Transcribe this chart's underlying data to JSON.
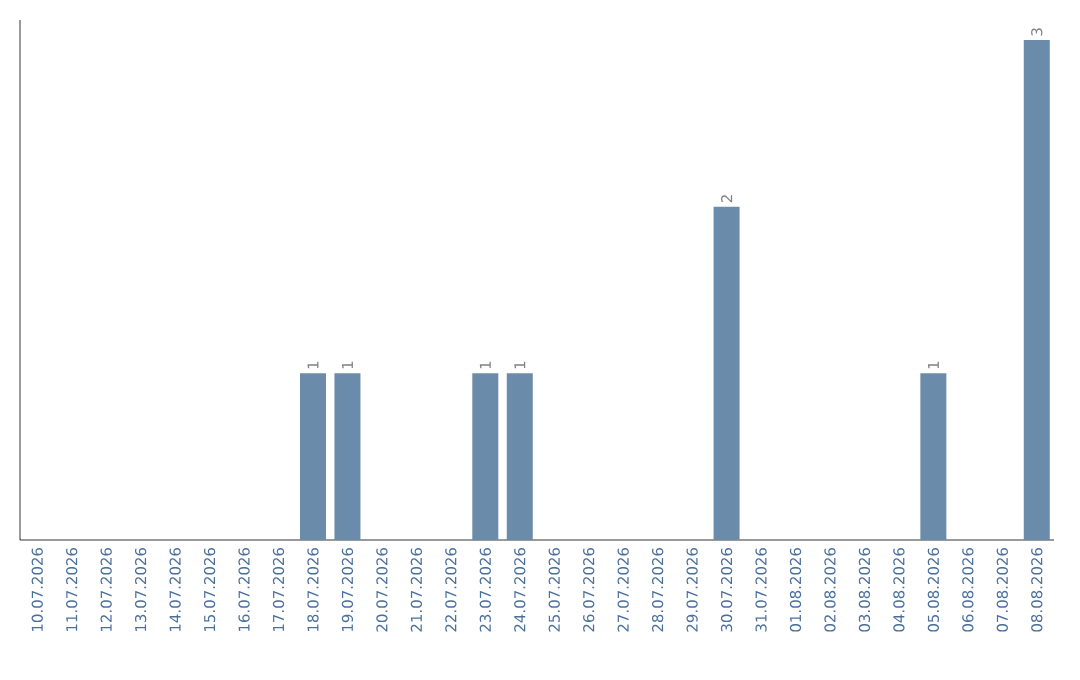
{
  "chart_data": {
    "type": "bar",
    "categories": [
      "10.07.2026",
      "11.07.2026",
      "12.07.2026",
      "13.07.2026",
      "14.07.2026",
      "15.07.2026",
      "16.07.2026",
      "17.07.2026",
      "18.07.2026",
      "19.07.2026",
      "20.07.2026",
      "21.07.2026",
      "22.07.2026",
      "23.07.2026",
      "24.07.2026",
      "25.07.2026",
      "26.07.2026",
      "27.07.2026",
      "28.07.2026",
      "29.07.2026",
      "30.07.2026",
      "31.07.2026",
      "01.08.2026",
      "02.08.2026",
      "03.08.2026",
      "04.08.2026",
      "05.08.2026",
      "06.08.2026",
      "07.08.2026",
      "08.08.2026"
    ],
    "values": [
      0,
      0,
      0,
      0,
      0,
      0,
      0,
      0,
      1,
      1,
      0,
      0,
      0,
      1,
      1,
      0,
      0,
      0,
      0,
      0,
      2,
      0,
      0,
      0,
      0,
      0,
      1,
      0,
      0,
      3
    ],
    "value_labels": [
      null,
      null,
      null,
      null,
      null,
      null,
      null,
      null,
      "1",
      "1",
      null,
      null,
      null,
      "1",
      "1",
      null,
      null,
      null,
      null,
      null,
      "2",
      null,
      null,
      null,
      null,
      null,
      "1",
      null,
      null,
      "3"
    ],
    "color": "#6b8bab"
  }
}
